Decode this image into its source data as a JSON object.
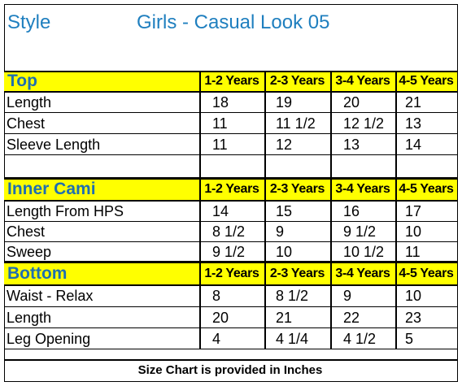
{
  "header": {
    "style_label": "Style",
    "title": "Girls  - Casual Look 05"
  },
  "columns": [
    "1-2 Years",
    "2-3 Years",
    "3-4 Years",
    "4-5 Years"
  ],
  "sections": [
    {
      "name": "Top",
      "rows": [
        {
          "label": "Length",
          "values": [
            "18",
            "19",
            "20",
            "21"
          ]
        },
        {
          "label": "Chest",
          "values": [
            "11",
            "11 1/2",
            "12 1/2",
            "13"
          ]
        },
        {
          "label": "Sleeve Length",
          "values": [
            "11",
            "12",
            "13",
            "14"
          ]
        }
      ]
    },
    {
      "name": "Inner Cami",
      "rows": [
        {
          "label": "Length  From HPS",
          "values": [
            "14",
            "15",
            "16",
            "17"
          ]
        },
        {
          "label": "Chest",
          "values": [
            "8 1/2",
            "9",
            "9 1/2",
            "10"
          ]
        },
        {
          "label": "Sweep",
          "values": [
            "9 1/2",
            "10",
            "10 1/2",
            "11"
          ]
        }
      ]
    },
    {
      "name": "Bottom",
      "rows": [
        {
          "label": "Waist    - Relax",
          "values": [
            "8",
            "8 1/2",
            "9",
            "10"
          ]
        },
        {
          "label": "Length",
          "values": [
            "20",
            "21",
            "22",
            "23"
          ]
        },
        {
          "label": "Leg Opening",
          "values": [
            "4",
            "4 1/4",
            "4 1/2",
            "5"
          ]
        }
      ]
    }
  ],
  "footer": "Size Chart is provided in Inches",
  "colors": {
    "section_fill": "#ffff00",
    "title_text": "#1f7fbf",
    "section_text": "#1f6fb0"
  }
}
